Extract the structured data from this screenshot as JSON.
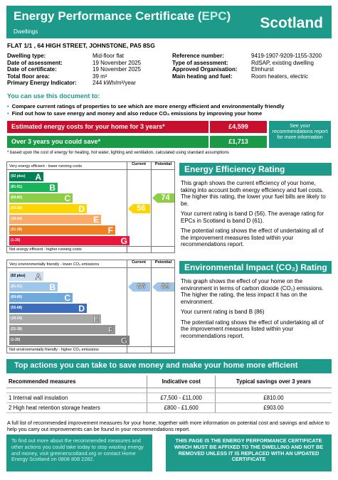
{
  "header": {
    "title_pre": "Energy Performance Certificate (",
    "title_epc": "EPC",
    "title_post": ")",
    "subtitle": "Dwellings",
    "country": "Scotland"
  },
  "address": "FLAT 1/1 , 64 HIGH STREET, JOHNSTONE, PA5 8SG",
  "details_left": [
    {
      "label": "Dwelling type:",
      "value": "Mid-floor flat"
    },
    {
      "label": "Date of assessment:",
      "value": "19 November 2025"
    },
    {
      "label": "Date of certificate:",
      "value": "19 November 2025"
    },
    {
      "label": "Total floor area:",
      "value": "39 m²"
    },
    {
      "label": "Primary Energy Indicator:",
      "value": "244 kWh/m²/year"
    }
  ],
  "details_right": [
    {
      "label": "Reference number:",
      "value": "9419-1907-9209-1155-3200"
    },
    {
      "label": "Type of assessment:",
      "value": "RdSAP, existing dwelling"
    },
    {
      "label": "Approved Organisation:",
      "value": "Elmhurst"
    },
    {
      "label": "Main heating and fuel:",
      "value": "Room heaters, electric"
    }
  ],
  "use_title": "You can use this document to:",
  "bullets": [
    "Compare current ratings of properties to see which are more energy efficient and environmentally friendly",
    "Find out how to save energy and money and also reduce CO₂ emissions by improving your home"
  ],
  "costs": {
    "estimated_label": "Estimated energy costs for your home for 3 years*",
    "estimated_value": "£4,599",
    "save_label": "Over 3 years you could save*",
    "save_value": "£1,713",
    "see_box": "See your recommendations report for more information",
    "footnote": "* based upon the cost of energy for heating, hot water, lighting and ventilation, calculated using standard assumptions"
  },
  "ee_chart": {
    "top_label": "Very energy efficient - lower running costs",
    "bottom_label": "Not energy efficient - higher running costs",
    "col_current": "Current",
    "col_potential": "Potential",
    "current": 56,
    "potential": 74,
    "current_band": "D",
    "potential_band": "C"
  },
  "ei_chart": {
    "top_label": "Very environmentally friendly - lower CO₂ emissions",
    "bottom_label": "Not environmentally friendly - higher CO₂ emissions",
    "col_current": "Current",
    "col_potential": "Potential",
    "current": 86,
    "potential": 89,
    "current_band": "B",
    "potential_band": "B"
  },
  "bands": [
    {
      "range": "(92 plus)",
      "letter": "A",
      "ee_color": "#008054",
      "ei_color": "#cfe2f3"
    },
    {
      "range": "(81-91)",
      "letter": "B",
      "ee_color": "#19b459",
      "ei_color": "#9fc5e8"
    },
    {
      "range": "(69-80)",
      "letter": "C",
      "ee_color": "#8dce46",
      "ei_color": "#6fa8dc"
    },
    {
      "range": "(55-68)",
      "letter": "D",
      "ee_color": "#ffd500",
      "ei_color": "#3d6ebd"
    },
    {
      "range": "(39-54)",
      "letter": "E",
      "ee_color": "#fcaa65",
      "ei_color": "#a9a9a9"
    },
    {
      "range": "(21-38)",
      "letter": "F",
      "ee_color": "#ef8023",
      "ei_color": "#969696"
    },
    {
      "range": "(1-20)",
      "letter": "G",
      "ee_color": "#e9153b",
      "ei_color": "#808080"
    }
  ],
  "ee_section": {
    "title": "Energy Efficiency Rating",
    "p1": "This graph shows the current efficiency of your home, taking into account both energy efficiency and fuel costs. The higher this rating, the lower your fuel bills are likely to be.",
    "p2": "Your current rating is band D (56). The average rating for EPCs in Scotland is band D (61).",
    "p3": "The potential rating shows the effect of undertaking all of the improvement measures listed within your recommendations report."
  },
  "ei_section": {
    "title": "Environmental Impact (CO₂) Rating",
    "p1": "This graph shows the effect of your home on the environment in terms of carbon dioxide (CO₂) emissions. The higher the rating, the less impact it has on the environment.",
    "p2": "Your current rating is band B (86)",
    "p3": "The potential rating shows the effect of undertaking all of the improvement measures listed within your recommendations report."
  },
  "actions": {
    "title": "Top actions you can take to save money and make your home more efficient",
    "headers": [
      "Recommended measures",
      "Indicative cost",
      "Typical savings over 3 years"
    ],
    "rows": [
      [
        "1 Internal wall insulation",
        "£7,500 - £11,000",
        "£810.00"
      ],
      [
        "2 High heat retention storage heaters",
        "£800 - £1,600",
        "£903.00"
      ]
    ]
  },
  "bottom_note": "A full list of recommended improvement measures for your home, together with more information on potential cost and savings and advice to help you carry out improvements can be found in your recommendations report.",
  "footer_left": "To find out more about the recommended measures and other actions you could take today to stop wasting energy and money, visit greenerscotland.org or contact Home Energy Scotland on 0808 808 2282.",
  "footer_right": "THIS PAGE IS THE ENERGY PERFORMANCE CERTIFICATE WHICH MUST BE AFFIXED TO THE DWELLING AND NOT BE REMOVED UNLESS IT IS REPLACED WITH AN UPDATED CERTIFICATE"
}
